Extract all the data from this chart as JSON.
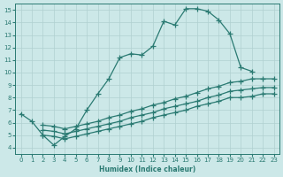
{
  "xlabel": "Humidex (Indice chaleur)",
  "ylabel": "",
  "xlim": [
    -0.5,
    23.5
  ],
  "ylim": [
    3.5,
    15.5
  ],
  "yticks": [
    4,
    5,
    6,
    7,
    8,
    9,
    10,
    11,
    12,
    13,
    14,
    15
  ],
  "xticks": [
    0,
    1,
    2,
    3,
    4,
    5,
    6,
    7,
    8,
    9,
    10,
    11,
    12,
    13,
    14,
    15,
    16,
    17,
    18,
    19,
    20,
    21,
    22,
    23
  ],
  "bg_color": "#cce8e8",
  "grid_color": "#b0d0d0",
  "line_color": "#2a7a72",
  "line_width": 0.9,
  "marker": "+",
  "marker_size": 4,
  "series": [
    {
      "x": [
        0,
        1,
        2,
        3,
        4,
        5,
        6,
        7,
        8,
        9,
        10,
        11,
        12,
        13,
        14,
        15,
        16,
        17,
        18,
        19,
        20,
        21
      ],
      "y": [
        6.7,
        6.1,
        5.0,
        4.2,
        4.9,
        5.5,
        7.0,
        8.3,
        9.5,
        11.2,
        11.5,
        11.4,
        12.1,
        14.1,
        13.8,
        15.1,
        15.1,
        14.9,
        14.2,
        13.1,
        10.4,
        10.1
      ]
    },
    {
      "x": [
        2,
        3,
        4,
        5,
        6,
        7,
        8,
        9,
        10,
        11,
        12,
        13,
        14,
        15,
        16,
        17,
        18,
        19,
        20,
        21,
        22,
        23
      ],
      "y": [
        5.8,
        5.7,
        5.5,
        5.7,
        5.9,
        6.1,
        6.4,
        6.6,
        6.9,
        7.1,
        7.4,
        7.6,
        7.9,
        8.1,
        8.4,
        8.7,
        8.9,
        9.2,
        9.3,
        9.5,
        9.5,
        9.5
      ]
    },
    {
      "x": [
        2,
        3,
        4,
        5,
        6,
        7,
        8,
        9,
        10,
        11,
        12,
        13,
        14,
        15,
        16,
        17,
        18,
        19,
        20,
        21,
        22,
        23
      ],
      "y": [
        5.4,
        5.3,
        5.1,
        5.3,
        5.5,
        5.7,
        5.9,
        6.1,
        6.4,
        6.6,
        6.8,
        7.1,
        7.3,
        7.5,
        7.7,
        8.0,
        8.2,
        8.5,
        8.6,
        8.7,
        8.8,
        8.8
      ]
    },
    {
      "x": [
        2,
        3,
        4,
        5,
        6,
        7,
        8,
        9,
        10,
        11,
        12,
        13,
        14,
        15,
        16,
        17,
        18,
        19,
        20,
        21,
        22,
        23
      ],
      "y": [
        5.0,
        4.9,
        4.7,
        4.9,
        5.1,
        5.3,
        5.5,
        5.7,
        5.9,
        6.1,
        6.4,
        6.6,
        6.8,
        7.0,
        7.3,
        7.5,
        7.7,
        8.0,
        8.0,
        8.1,
        8.3,
        8.3
      ]
    }
  ]
}
